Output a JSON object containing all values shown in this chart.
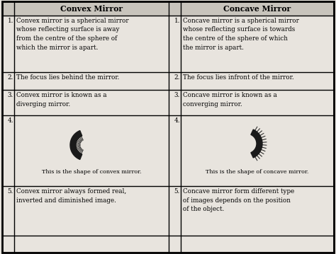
{
  "bg_color": "#e8e4de",
  "header_bg": "#c8c4bc",
  "border_color": "#000000",
  "header_text_color": "#000000",
  "body_text_color": "#000000",
  "col_header_left": "Convex Mirror",
  "col_header_right": "Concave Mirror",
  "rows": [
    {
      "num": "1.",
      "left": "Convex mirror is a spherical mirror\nwhose reflecting surface is away\nfrom the centre of the sphere of\nwhich the mirror is apart.",
      "right": "Concave mirror is a spherical mirror\nwhose reflecting surface is towards\nthe centre of the sphere of which\nthe mirror is apart."
    },
    {
      "num": "2.",
      "left": "The focus lies behind the mirror.",
      "right": "The focus lies infront of the mirror."
    },
    {
      "num": "3.",
      "left": "Convex mirror is known as a\ndiverging mirror.",
      "right": "Concave mirror is known as a\nconverging mirror."
    },
    {
      "num": "4.",
      "left": "This is the shape of convex mirror.",
      "right": "This is the shape of concave mirror."
    },
    {
      "num": "5.",
      "left": "Convex mirror always formed real,\ninverted and diminished image.",
      "right": "Concave mirror form different type\nof images depends on the position\nof the object."
    }
  ],
  "figw": 4.74,
  "figh": 3.59,
  "dpi": 100
}
